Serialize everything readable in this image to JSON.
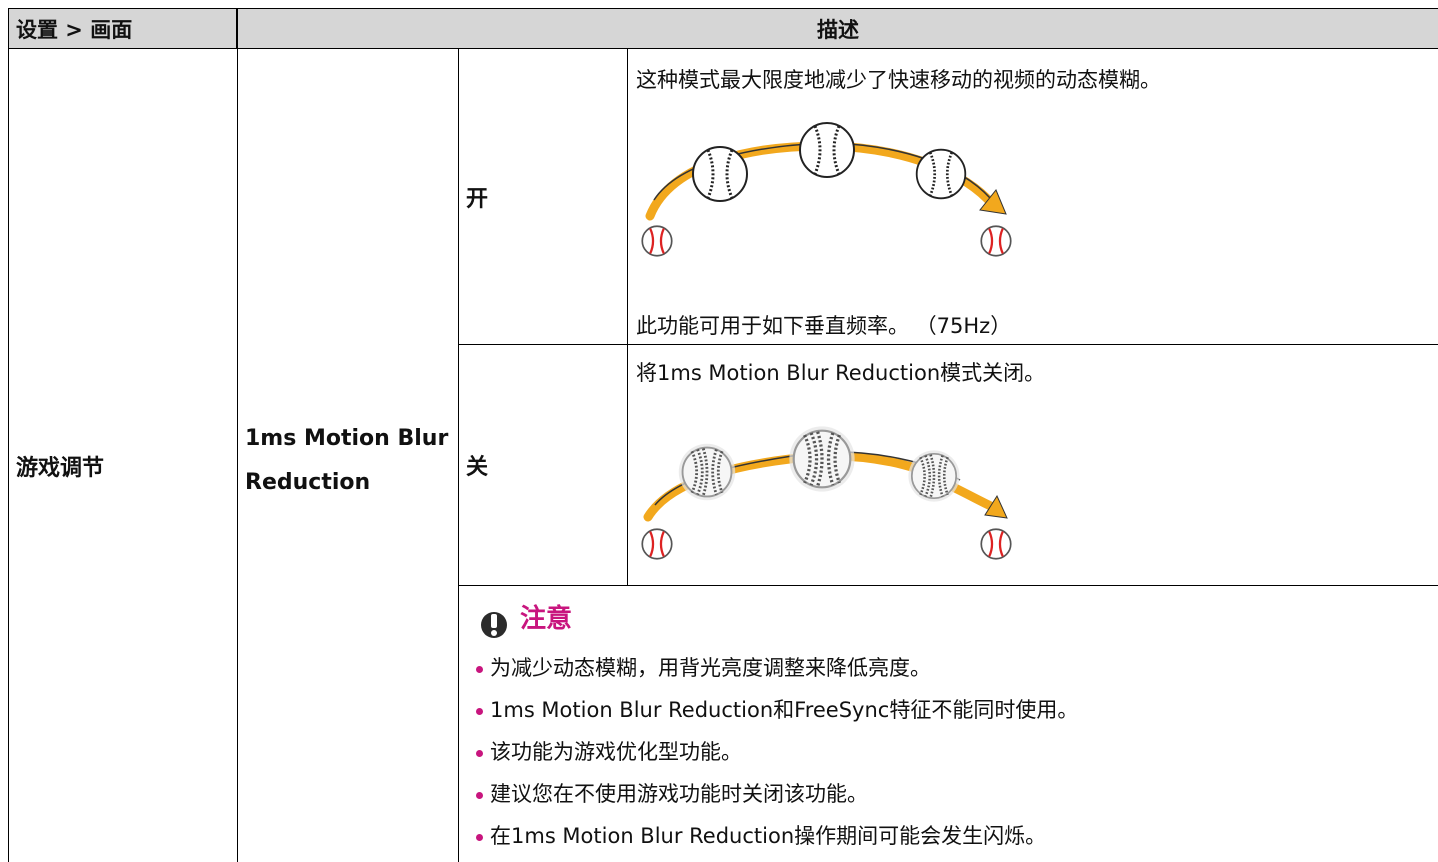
{
  "header": {
    "setting": "设置 > 画面",
    "description": "描述"
  },
  "table": {
    "category": "游戏调节",
    "setting": "1ms Motion Blur Reduction",
    "options": [
      {
        "label": "开",
        "description": "这种模式最大限度地减少了快速移动的视频的动态模糊。",
        "note": "此功能可用于如下垂直频率。 （75Hz）"
      },
      {
        "label": "关",
        "description": "将1ms Motion Blur Reduction模式关闭。"
      }
    ]
  },
  "notice": {
    "title": "注意",
    "items": [
      "为减少动态模糊，用背光亮度调整来降低亮度。",
      "1ms Motion Blur Reduction和FreeSync特征不能同时使用。",
      "该功能为游戏优化型功能。",
      "建议您在不使用游戏功能时关闭该功能。",
      "在1ms Motion Blur Reduction操作期间可能会发生闪烁。"
    ]
  }
}
